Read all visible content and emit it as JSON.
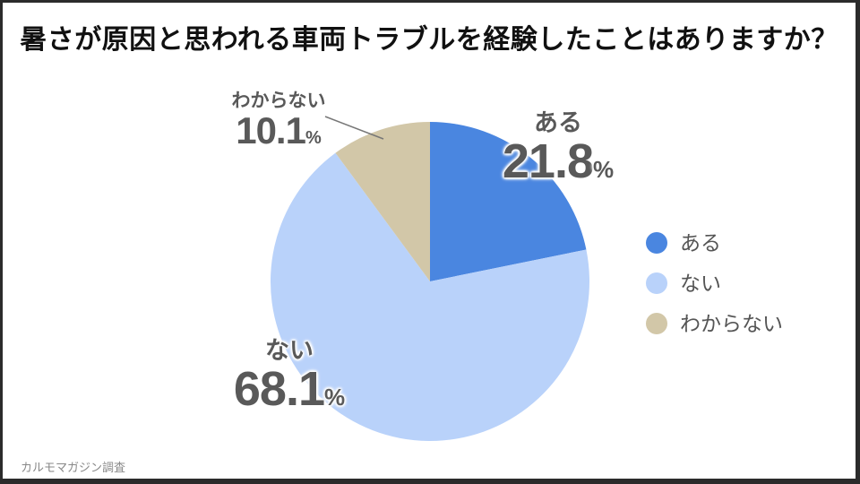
{
  "title": "暑さが原因と思われる車両トラブルを経験したことはありますか？",
  "source": "カルモマガジン調査",
  "frame": {
    "border_color": "#2b2b2b",
    "background": "#ffffff"
  },
  "text_colors": {
    "title": "#111111",
    "slice_label": "#595959",
    "legend": "#555555",
    "source": "#888888",
    "leader_line": "#777777"
  },
  "chart_data": {
    "type": "pie",
    "title": "暑さが原因と思われる車両トラブルを経験したことはありますか？",
    "categories": [
      "ある",
      "ない",
      "わからない"
    ],
    "values": [
      21.8,
      68.1,
      10.1
    ],
    "unit": "%",
    "colors": [
      "#4a86e0",
      "#b9d2fa",
      "#d2c7a8"
    ],
    "start_angle_deg": 0,
    "direction": "clockwise",
    "legend_position": "right",
    "source": "カルモマガジン調査"
  }
}
